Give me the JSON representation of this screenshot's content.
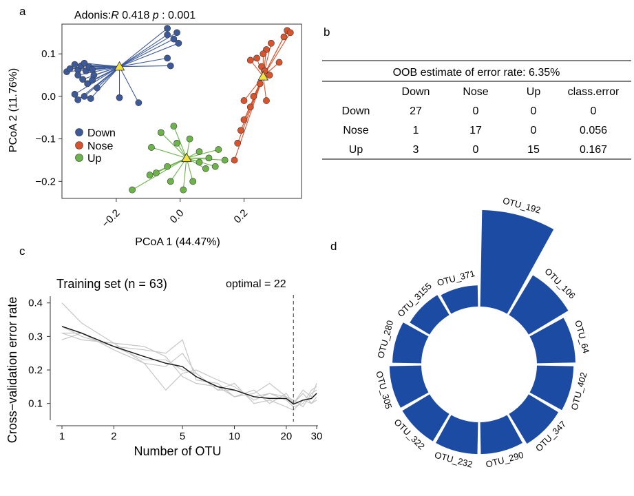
{
  "panels": {
    "a": "a",
    "b": "b",
    "c": "c",
    "d": "d"
  },
  "colors": {
    "down": "#3c5a9a",
    "nose": "#d9532c",
    "up": "#6cb44a",
    "centroid": "#f5e13b",
    "bar": "#1c4ba3",
    "grey": "#c6c6c6"
  },
  "chart_data": [
    {
      "id": "pcoa",
      "type": "scatter",
      "title_prefix": "Adonis:",
      "title_R": "R",
      "title_R_value": "0.418",
      "title_p": "p",
      "title_p_value": ": 0.001",
      "xlabel": "PCoA 1 (44.47%)",
      "ylabel": "PCoA 2 (11.76%)",
      "xlim": [
        -0.37,
        0.38
      ],
      "ylim": [
        -0.24,
        0.17
      ],
      "xticks": [
        -0.2,
        0.0,
        0.2
      ],
      "xtick_labels": [
        "−0.2",
        "0.0",
        "0.2"
      ],
      "yticks": [
        -0.2,
        -0.1,
        0.0,
        0.1
      ],
      "ytick_labels": [
        "−0.2",
        "−0.1",
        "0.0",
        "0.1"
      ],
      "legend": [
        "Down",
        "Nose",
        "Up"
      ],
      "series": [
        {
          "name": "Down",
          "centroid": [
            -0.19,
            0.07
          ],
          "points": [
            [
              -0.355,
              0.058
            ],
            [
              -0.345,
              0.065
            ],
            [
              -0.33,
              0.075
            ],
            [
              -0.32,
              0.062
            ],
            [
              -0.31,
              0.072
            ],
            [
              -0.3,
              0.078
            ],
            [
              -0.295,
              0.06
            ],
            [
              -0.285,
              0.07
            ],
            [
              -0.275,
              0.063
            ],
            [
              -0.27,
              0.05
            ],
            [
              -0.32,
              0.05
            ],
            [
              -0.305,
              0.04
            ],
            [
              -0.29,
              0.03
            ],
            [
              -0.275,
              0.038
            ],
            [
              -0.26,
              0.02
            ],
            [
              -0.3,
              0.0
            ],
            [
              -0.28,
              -0.005
            ],
            [
              -0.33,
              0.005
            ],
            [
              -0.32,
              -0.008
            ],
            [
              -0.19,
              -0.003
            ],
            [
              -0.13,
              -0.015
            ],
            [
              -0.04,
              0.16
            ],
            [
              -0.04,
              0.145
            ],
            [
              -0.02,
              0.135
            ],
            [
              -0.01,
              0.15
            ],
            [
              -0.005,
              0.125
            ],
            [
              -0.04,
              0.09
            ],
            [
              -0.03,
              0.072
            ]
          ]
        },
        {
          "name": "Nose",
          "centroid": [
            0.26,
            0.047
          ],
          "points": [
            [
              0.335,
              0.155
            ],
            [
              0.345,
              0.15
            ],
            [
              0.325,
              0.14
            ],
            [
              0.285,
              0.125
            ],
            [
              0.27,
              0.11
            ],
            [
              0.26,
              0.1
            ],
            [
              0.24,
              0.09
            ],
            [
              0.22,
              0.085
            ],
            [
              0.255,
              0.07
            ],
            [
              0.265,
              0.06
            ],
            [
              0.28,
              0.05
            ],
            [
              0.31,
              0.08
            ],
            [
              0.25,
              0.03
            ],
            [
              0.23,
              0.0
            ],
            [
              0.27,
              -0.01
            ],
            [
              0.2,
              -0.01
            ],
            [
              0.22,
              -0.025
            ],
            [
              0.2,
              -0.055
            ],
            [
              0.19,
              -0.08
            ],
            [
              0.18,
              -0.11
            ],
            [
              0.17,
              -0.15
            ]
          ]
        },
        {
          "name": "Up",
          "centroid": [
            0.02,
            -0.145
          ],
          "points": [
            [
              -0.15,
              -0.22
            ],
            [
              -0.095,
              -0.185
            ],
            [
              -0.075,
              -0.18
            ],
            [
              -0.04,
              -0.165
            ],
            [
              -0.09,
              -0.12
            ],
            [
              -0.06,
              -0.085
            ],
            [
              -0.02,
              -0.07
            ],
            [
              -0.01,
              -0.11
            ],
            [
              0.03,
              -0.1
            ],
            [
              0.06,
              -0.13
            ],
            [
              0.09,
              -0.145
            ],
            [
              0.11,
              -0.165
            ],
            [
              0.14,
              -0.15
            ],
            [
              0.04,
              -0.2
            ],
            [
              0.01,
              -0.22
            ],
            [
              -0.03,
              -0.2
            ],
            [
              0.08,
              -0.17
            ],
            [
              0.12,
              -0.125
            ],
            [
              0.06,
              -0.155
            ]
          ]
        }
      ]
    },
    {
      "id": "oob",
      "type": "table",
      "title": "OOB estimate of  error rate: 6.35%",
      "columns": [
        "",
        "Down",
        "Nose",
        "Up",
        "class.error"
      ],
      "rows": [
        [
          "Down",
          "27",
          "0",
          "0",
          "0"
        ],
        [
          "Nose",
          "1",
          "17",
          "0",
          "0.056"
        ],
        [
          "Up",
          "3",
          "0",
          "15",
          "0.167"
        ]
      ]
    },
    {
      "id": "cv",
      "type": "line",
      "title": "Training set (n = 63)",
      "annotation": "optimal = 22",
      "xlabel": "Number of OTU",
      "ylabel": "Cross−validation error rate",
      "xscale": "log",
      "xlim": [
        0.9,
        33
      ],
      "ylim": [
        0.05,
        0.42
      ],
      "xticks": [
        1,
        2,
        5,
        10,
        20,
        30
      ],
      "xtick_labels": [
        "1",
        "2",
        "5",
        "10",
        "20",
        "30"
      ],
      "yticks": [
        0.1,
        0.2,
        0.3,
        0.4
      ],
      "ytick_labels": [
        "0.1",
        "0.2",
        "0.3",
        "0.4"
      ],
      "optimal": 22,
      "mean": {
        "x": [
          1,
          1.3,
          2,
          3,
          4,
          5,
          6,
          8,
          10,
          13,
          16,
          20,
          22,
          25,
          28,
          30
        ],
        "y": [
          0.33,
          0.31,
          0.27,
          0.24,
          0.22,
          0.21,
          0.18,
          0.15,
          0.14,
          0.12,
          0.115,
          0.115,
          0.098,
          0.11,
          0.115,
          0.13
        ]
      },
      "series": [
        {
          "name": "rep1",
          "x": [
            1,
            1.3,
            2,
            3,
            4,
            5,
            6,
            8,
            10,
            13,
            16,
            20,
            22,
            25,
            28,
            30
          ],
          "y": [
            0.4,
            0.34,
            0.28,
            0.22,
            0.14,
            0.19,
            0.2,
            0.17,
            0.15,
            0.11,
            0.13,
            0.12,
            0.1,
            0.14,
            0.12,
            0.16
          ]
        },
        {
          "name": "rep2",
          "x": [
            1,
            1.3,
            2,
            3,
            4,
            5,
            6,
            8,
            10,
            13,
            16,
            20,
            22,
            25,
            28,
            30
          ],
          "y": [
            0.29,
            0.31,
            0.26,
            0.22,
            0.21,
            0.25,
            0.19,
            0.14,
            0.16,
            0.1,
            0.11,
            0.09,
            0.08,
            0.11,
            0.1,
            0.11
          ]
        },
        {
          "name": "rep3",
          "x": [
            1,
            1.3,
            2,
            3,
            4,
            5,
            6,
            8,
            10,
            13,
            16,
            20,
            22,
            25,
            28,
            30
          ],
          "y": [
            0.33,
            0.3,
            0.27,
            0.26,
            0.25,
            0.29,
            0.17,
            0.16,
            0.12,
            0.13,
            0.16,
            0.12,
            0.11,
            0.09,
            0.13,
            0.14
          ]
        },
        {
          "name": "rep4",
          "x": [
            1,
            1.3,
            2,
            3,
            4,
            5,
            6,
            8,
            10,
            13,
            16,
            20,
            22,
            25,
            28,
            30
          ],
          "y": [
            0.31,
            0.29,
            0.28,
            0.27,
            0.24,
            0.18,
            0.16,
            0.15,
            0.12,
            0.14,
            0.1,
            0.13,
            0.1,
            0.13,
            0.1,
            0.12
          ]
        },
        {
          "name": "rep5",
          "x": [
            1,
            1.3,
            2,
            3,
            4,
            5,
            6,
            8,
            10,
            13,
            16,
            20,
            22,
            25,
            28,
            30
          ],
          "y": [
            0.31,
            0.31,
            0.27,
            0.23,
            0.23,
            0.2,
            0.19,
            0.14,
            0.14,
            0.12,
            0.13,
            0.11,
            0.09,
            0.1,
            0.14,
            0.15
          ]
        }
      ]
    },
    {
      "id": "radial",
      "type": "bar",
      "subtype": "radial",
      "categories": [
        "OTU_192",
        "OTU_106",
        "OTU_64",
        "OTU_402",
        "OTU_347",
        "OTU_290",
        "OTU_232",
        "OTU_322",
        "OTU_305",
        "OTU_280",
        "OTU_3155",
        "OTU_371"
      ],
      "values": [
        100,
        48,
        40,
        38,
        36,
        33,
        33,
        33,
        33,
        30,
        24,
        22
      ]
    }
  ]
}
